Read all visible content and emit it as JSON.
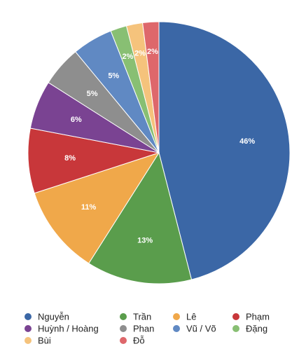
{
  "chart_data": {
    "type": "pie",
    "categories": [
      "Nguyễn",
      "Trần",
      "Lê",
      "Phạm",
      "Huỳnh / Hoàng",
      "Phan",
      "Vũ / Võ",
      "Đặng",
      "Bùi",
      "Đỗ"
    ],
    "values": [
      46,
      13,
      11,
      8,
      6,
      5,
      5,
      2,
      2,
      2
    ],
    "value_labels": [
      "46%",
      "13%",
      "11%",
      "8%",
      "6%",
      "5%",
      "5%",
      "2%",
      "2%",
      "2%"
    ],
    "colors": [
      "#3b67a6",
      "#5a9d4c",
      "#f0a84a",
      "#c8373a",
      "#7a4392",
      "#8e8e8e",
      "#6089c3",
      "#88bf73",
      "#f5c37c",
      "#de676b"
    ]
  }
}
